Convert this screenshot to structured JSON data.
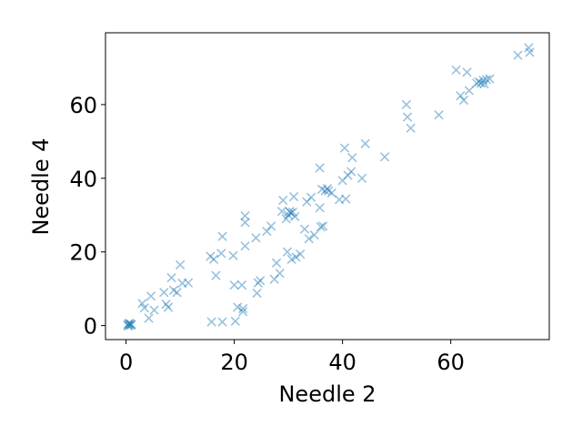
{
  "chart_data": {
    "type": "scatter",
    "xlabel": "Needle 2",
    "ylabel": "Needle 4",
    "xlim": [
      -3.8,
      78.2
    ],
    "ylim": [
      -3.8,
      79.5
    ],
    "xticks": [
      0,
      20,
      40,
      60
    ],
    "yticks": [
      0,
      20,
      40,
      60
    ],
    "grid": false,
    "marker": "x",
    "color": "#1f77b4",
    "alpha": 0.45,
    "series": [
      {
        "points": [
          [
            0.3,
            0.2
          ],
          [
            0.5,
            0.5
          ],
          [
            0.7,
            0.1
          ],
          [
            0.9,
            0.4
          ],
          [
            0.4,
            -0.1
          ],
          [
            1.0,
            0.2
          ],
          [
            0.6,
            0.6
          ],
          [
            3.0,
            6.0
          ],
          [
            3.4,
            4.8
          ],
          [
            4.2,
            2.0
          ],
          [
            4.6,
            8.0
          ],
          [
            5.2,
            4.2
          ],
          [
            7.0,
            9.0
          ],
          [
            7.4,
            5.8
          ],
          [
            7.8,
            5.0
          ],
          [
            8.4,
            13.0
          ],
          [
            8.8,
            9.6
          ],
          [
            9.4,
            9.0
          ],
          [
            10.0,
            16.5
          ],
          [
            10.4,
            11.5
          ],
          [
            11.5,
            11.6
          ],
          [
            15.6,
            18.8
          ],
          [
            15.8,
            1.0
          ],
          [
            16.2,
            18.0
          ],
          [
            16.6,
            13.6
          ],
          [
            17.6,
            19.6
          ],
          [
            17.8,
            24.2
          ],
          [
            17.8,
            1.0
          ],
          [
            19.8,
            19.0
          ],
          [
            20.0,
            11.0
          ],
          [
            20.2,
            1.2
          ],
          [
            20.6,
            5.0
          ],
          [
            21.4,
            11.0
          ],
          [
            21.6,
            4.6
          ],
          [
            21.6,
            3.8
          ],
          [
            22.0,
            21.6
          ],
          [
            22.0,
            28.0
          ],
          [
            22.0,
            29.8
          ],
          [
            24.0,
            23.8
          ],
          [
            24.2,
            8.8
          ],
          [
            24.4,
            11.6
          ],
          [
            24.8,
            12.2
          ],
          [
            26.0,
            25.6
          ],
          [
            26.8,
            27.0
          ],
          [
            27.4,
            12.6
          ],
          [
            27.8,
            17.0
          ],
          [
            28.4,
            14.2
          ],
          [
            28.8,
            31.0
          ],
          [
            29.0,
            34.0
          ],
          [
            29.6,
            29.0
          ],
          [
            29.8,
            20.0
          ],
          [
            30.0,
            30.0
          ],
          [
            30.2,
            31.0
          ],
          [
            30.4,
            30.6
          ],
          [
            30.6,
            18.0
          ],
          [
            30.8,
            30.8
          ],
          [
            31.0,
            35.0
          ],
          [
            31.2,
            29.6
          ],
          [
            31.4,
            18.6
          ],
          [
            32.2,
            19.4
          ],
          [
            33.0,
            26.2
          ],
          [
            33.4,
            33.6
          ],
          [
            33.8,
            23.6
          ],
          [
            34.2,
            34.8
          ],
          [
            34.8,
            24.6
          ],
          [
            35.8,
            32.0
          ],
          [
            35.8,
            42.8
          ],
          [
            36.0,
            26.8
          ],
          [
            36.4,
            27.0
          ],
          [
            36.2,
            37.0
          ],
          [
            36.8,
            36.6
          ],
          [
            37.2,
            37.2
          ],
          [
            37.4,
            36.6
          ],
          [
            38.0,
            36.0
          ],
          [
            39.4,
            34.2
          ],
          [
            40.0,
            39.4
          ],
          [
            40.4,
            48.2
          ],
          [
            40.6,
            34.4
          ],
          [
            41.0,
            40.8
          ],
          [
            41.6,
            41.8
          ],
          [
            41.8,
            45.6
          ],
          [
            43.6,
            40.0
          ],
          [
            44.2,
            49.4
          ],
          [
            47.8,
            45.8
          ],
          [
            51.8,
            60.0
          ],
          [
            52.0,
            56.6
          ],
          [
            52.6,
            53.6
          ],
          [
            57.8,
            57.2
          ],
          [
            61.0,
            69.4
          ],
          [
            61.8,
            62.4
          ],
          [
            62.4,
            61.2
          ],
          [
            63.0,
            68.8
          ],
          [
            63.4,
            63.8
          ],
          [
            64.8,
            65.8
          ],
          [
            65.2,
            66.2
          ],
          [
            65.6,
            65.8
          ],
          [
            66.0,
            66.6
          ],
          [
            66.2,
            65.6
          ],
          [
            66.6,
            66.8
          ],
          [
            67.2,
            67.0
          ],
          [
            72.4,
            73.4
          ],
          [
            74.4,
            75.4
          ],
          [
            74.6,
            74.2
          ]
        ]
      }
    ]
  }
}
